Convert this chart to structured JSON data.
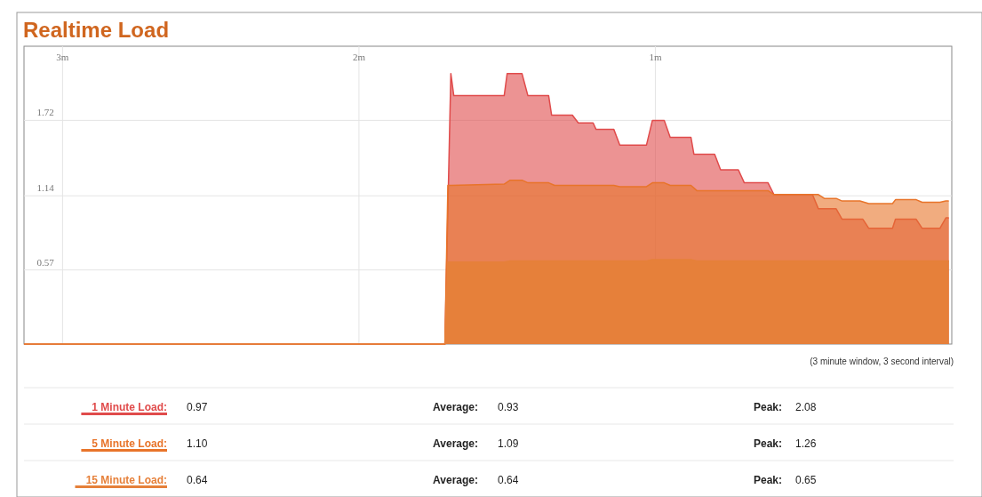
{
  "chart_data": {
    "type": "area",
    "title": "Realtime Load",
    "xlim": [
      3.13,
      0
    ],
    "xticks": [
      {
        "value": 3,
        "label": "3m"
      },
      {
        "value": 2,
        "label": "2m"
      },
      {
        "value": 1,
        "label": "1m"
      }
    ],
    "ylim": [
      0,
      2.29
    ],
    "yticks": [
      0.57,
      1.14,
      1.72
    ],
    "grid": true,
    "legend": "bottom",
    "series": [
      {
        "name": "1 Minute Load:",
        "color": "#e04b4b",
        "x": [
          3.13,
          1.71,
          1.69,
          1.68,
          1.51,
          1.5,
          1.45,
          1.43,
          1.36,
          1.35,
          1.28,
          1.26,
          1.21,
          1.2,
          1.14,
          1.12,
          1.03,
          1.01,
          0.97,
          0.95,
          0.88,
          0.87,
          0.8,
          0.78,
          0.72,
          0.7,
          0.62,
          0.6,
          0.47,
          0.45,
          0.39,
          0.37,
          0.3,
          0.28,
          0.2,
          0.19,
          0.12,
          0.1,
          0.04,
          0.02,
          0.01
        ],
        "values": [
          0,
          0,
          2.08,
          1.91,
          1.91,
          2.08,
          2.08,
          1.91,
          1.91,
          1.76,
          1.76,
          1.7,
          1.7,
          1.65,
          1.65,
          1.53,
          1.53,
          1.72,
          1.72,
          1.59,
          1.59,
          1.46,
          1.46,
          1.34,
          1.34,
          1.24,
          1.24,
          1.15,
          1.15,
          1.04,
          1.04,
          0.96,
          0.96,
          0.89,
          0.89,
          0.96,
          0.96,
          0.89,
          0.89,
          0.97,
          0.97
        ]
      },
      {
        "name": "5 Minute Load:",
        "color": "#e8742a",
        "x": [
          3.13,
          1.71,
          1.7,
          1.51,
          1.49,
          1.45,
          1.43,
          1.36,
          1.34,
          1.14,
          1.12,
          1.03,
          1.01,
          0.97,
          0.95,
          0.88,
          0.86,
          0.62,
          0.6,
          0.45,
          0.43,
          0.39,
          0.37,
          0.31,
          0.28,
          0.2,
          0.19,
          0.12,
          0.1,
          0.04,
          0.02,
          0.01
        ],
        "values": [
          0,
          0,
          1.22,
          1.23,
          1.26,
          1.26,
          1.24,
          1.24,
          1.22,
          1.22,
          1.21,
          1.21,
          1.24,
          1.24,
          1.22,
          1.22,
          1.18,
          1.18,
          1.15,
          1.15,
          1.12,
          1.12,
          1.1,
          1.1,
          1.08,
          1.08,
          1.11,
          1.11,
          1.09,
          1.09,
          1.1,
          1.1
        ]
      },
      {
        "name": "15 Minute Load:",
        "color": "#e6803a",
        "x": [
          3.13,
          1.71,
          1.7,
          1.51,
          1.49,
          1.03,
          1.01,
          0.88,
          0.86,
          0.01
        ],
        "values": [
          0,
          0,
          0.63,
          0.63,
          0.64,
          0.64,
          0.65,
          0.65,
          0.64,
          0.64
        ]
      }
    ],
    "annotations": [
      "(3 minute window, 3 second interval)",
      "0.97",
      "Average:",
      "0.93",
      "Peak:",
      "2.08",
      "1.10",
      "Average:",
      "1.09",
      "Peak:",
      "1.26",
      "0.64",
      "Average:",
      "0.64",
      "Peak:",
      "0.65"
    ]
  }
}
